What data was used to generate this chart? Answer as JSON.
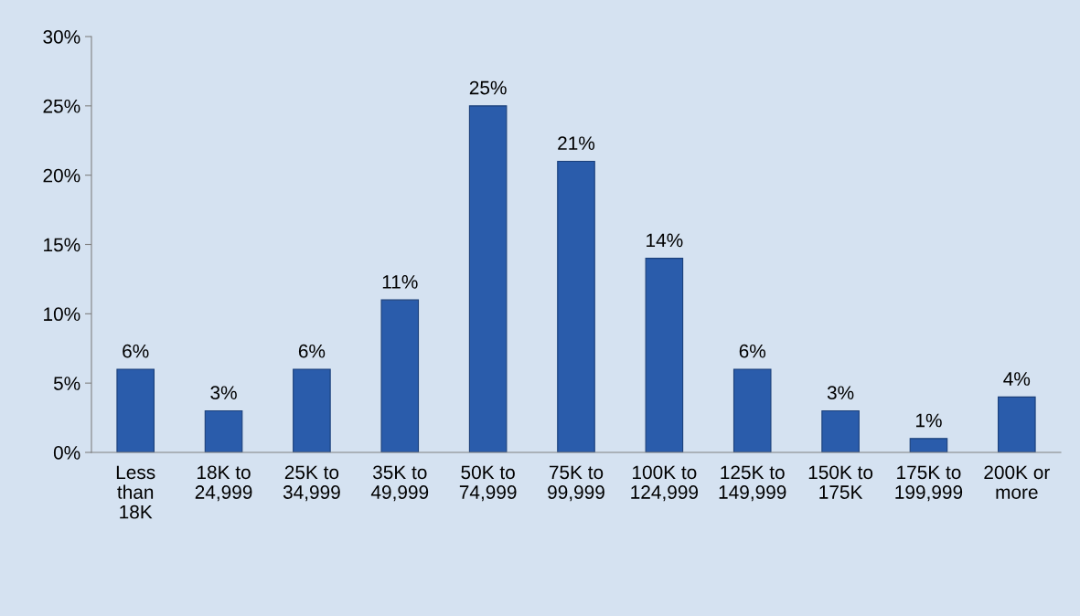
{
  "chart_data": {
    "type": "bar",
    "categories": [
      "Less\nthan\n18K",
      "18K to\n24,999",
      "25K to\n34,999",
      "35K to\n49,999",
      "50K to\n74,999",
      "75K to\n99,999",
      "100K to\n124,999",
      "125K to\n149,999",
      "150K to\n175K",
      "175K to\n199,999",
      "200K or\nmore"
    ],
    "values": [
      6,
      3,
      6,
      11,
      25,
      21,
      14,
      6,
      3,
      1,
      4
    ],
    "value_labels": [
      "6%",
      "3%",
      "6%",
      "11%",
      "25%",
      "21%",
      "14%",
      "6%",
      "3%",
      "1%",
      "4%"
    ],
    "color": "#2a5cab",
    "ylim": [
      0,
      30
    ],
    "yticks": [
      {
        "value": 0,
        "label": "0%"
      },
      {
        "value": 5,
        "label": "5%"
      },
      {
        "value": 10,
        "label": "10%"
      },
      {
        "value": 15,
        "label": "15%"
      },
      {
        "value": 20,
        "label": "20%"
      },
      {
        "value": 25,
        "label": "25%"
      },
      {
        "value": 30,
        "label": "30%"
      }
    ],
    "grid": false,
    "legend": false
  }
}
